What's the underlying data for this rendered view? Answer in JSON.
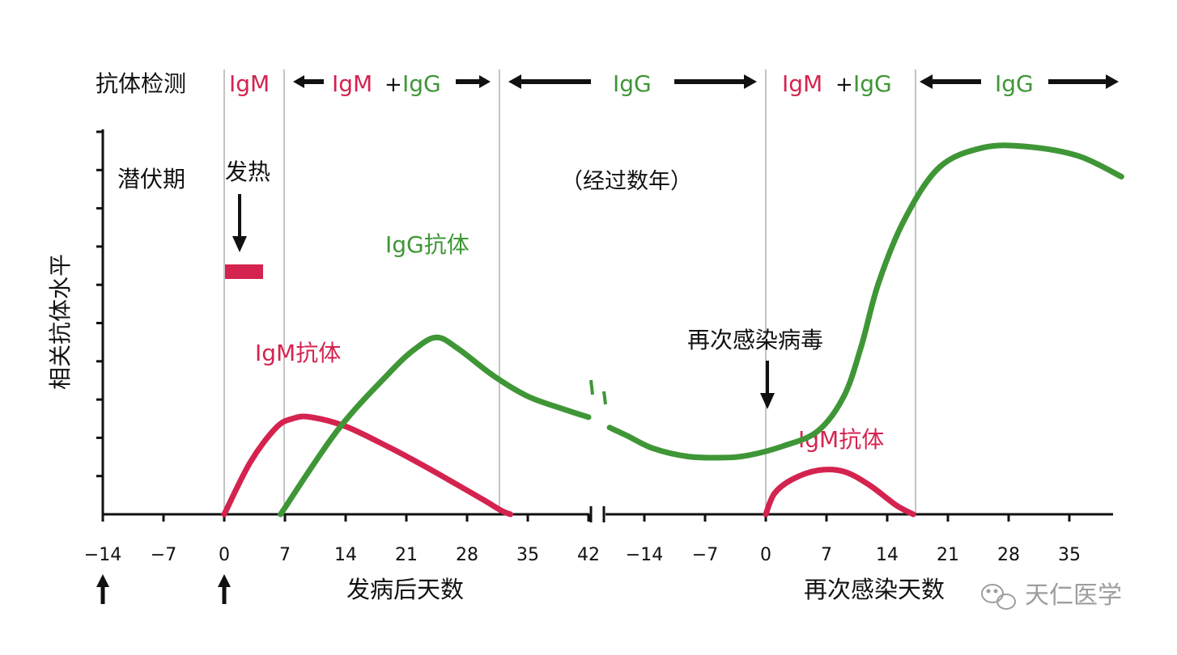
{
  "colors": {
    "igm": "#d4234f",
    "igg": "#3f9636",
    "axis": "#111111",
    "divider": "#9e9e9e",
    "text": "#111111"
  },
  "header": {
    "title": "抗体检测",
    "igm": "IgM",
    "igg": "IgG",
    "plus": "+"
  },
  "labels": {
    "incubation": "潜伏期",
    "fever": "发热",
    "years": "（经过数年）",
    "igg_antibody": "IgG抗体",
    "igm_antibody": "IgM抗体",
    "igm_antibody_2": "IgM抗体",
    "reinfection": "再次感染病毒",
    "ylabel": "相关抗体水平",
    "xlabel_left": "发病后天数",
    "xlabel_right": "再次感染天数",
    "watermark": "天仁医学"
  },
  "chart_data": {
    "type": "line",
    "ylabel": "相关抗体水平",
    "y_ticks": 10,
    "grid": false,
    "panels": [
      {
        "xlabel": "发病后天数",
        "x_ticks": [
          "−14",
          "−7",
          "0",
          "7",
          "14",
          "21",
          "28",
          "35",
          "42"
        ],
        "xlim": [
          -14,
          42
        ],
        "series": [
          {
            "name": "IgM抗体",
            "color": "#d4234f",
            "points": [
              [
                0,
                0
              ],
              [
                3,
                0.45
              ],
              [
                6,
                0.75
              ],
              [
                8,
                0.83
              ],
              [
                10,
                0.84
              ],
              [
                14,
                0.76
              ],
              [
                19,
                0.58
              ],
              [
                23,
                0.42
              ],
              [
                27,
                0.25
              ],
              [
                30,
                0.12
              ],
              [
                32,
                0.03
              ],
              [
                33,
                0
              ]
            ]
          },
          {
            "name": "IgG抗体",
            "color": "#3f9636",
            "points": [
              [
                6.5,
                0
              ],
              [
                13,
                0.72
              ],
              [
                19,
                1.22
              ],
              [
                22,
                1.43
              ],
              [
                24.5,
                1.53
              ],
              [
                27,
                1.43
              ],
              [
                31,
                1.2
              ],
              [
                35,
                1.02
              ],
              [
                39.5,
                0.9
              ],
              [
                42,
                0.84
              ]
            ]
          }
        ],
        "fever_marker_x": [
          0,
          5
        ]
      },
      {
        "xlabel": "再次感染天数",
        "x_ticks": [
          "−14",
          "−7",
          "0",
          "7",
          "14",
          "21",
          "28",
          "35"
        ],
        "xlim": [
          -18,
          41
        ],
        "series": [
          {
            "name": "IgG抗体",
            "color": "#3f9636",
            "points": [
              [
                -18,
                0.75
              ],
              [
                -16,
                0.68
              ],
              [
                -13,
                0.57
              ],
              [
                -9,
                0.5
              ],
              [
                -5,
                0.49
              ],
              [
                -2,
                0.51
              ],
              [
                2,
                0.59
              ],
              [
                6,
                0.72
              ],
              [
                9,
                1.02
              ],
              [
                11,
                1.45
              ],
              [
                13,
                2.0
              ],
              [
                16,
                2.55
              ],
              [
                20,
                3.0
              ],
              [
                25,
                3.17
              ],
              [
                30,
                3.18
              ],
              [
                36,
                3.1
              ],
              [
                41,
                2.92
              ]
            ]
          },
          {
            "name": "IgM抗体",
            "color": "#d4234f",
            "points": [
              [
                0,
                0
              ],
              [
                1,
                0.18
              ],
              [
                3,
                0.3
              ],
              [
                6,
                0.38
              ],
              [
                9,
                0.37
              ],
              [
                12,
                0.25
              ],
              [
                15,
                0.08
              ],
              [
                17,
                0
              ]
            ]
          }
        ]
      }
    ]
  }
}
